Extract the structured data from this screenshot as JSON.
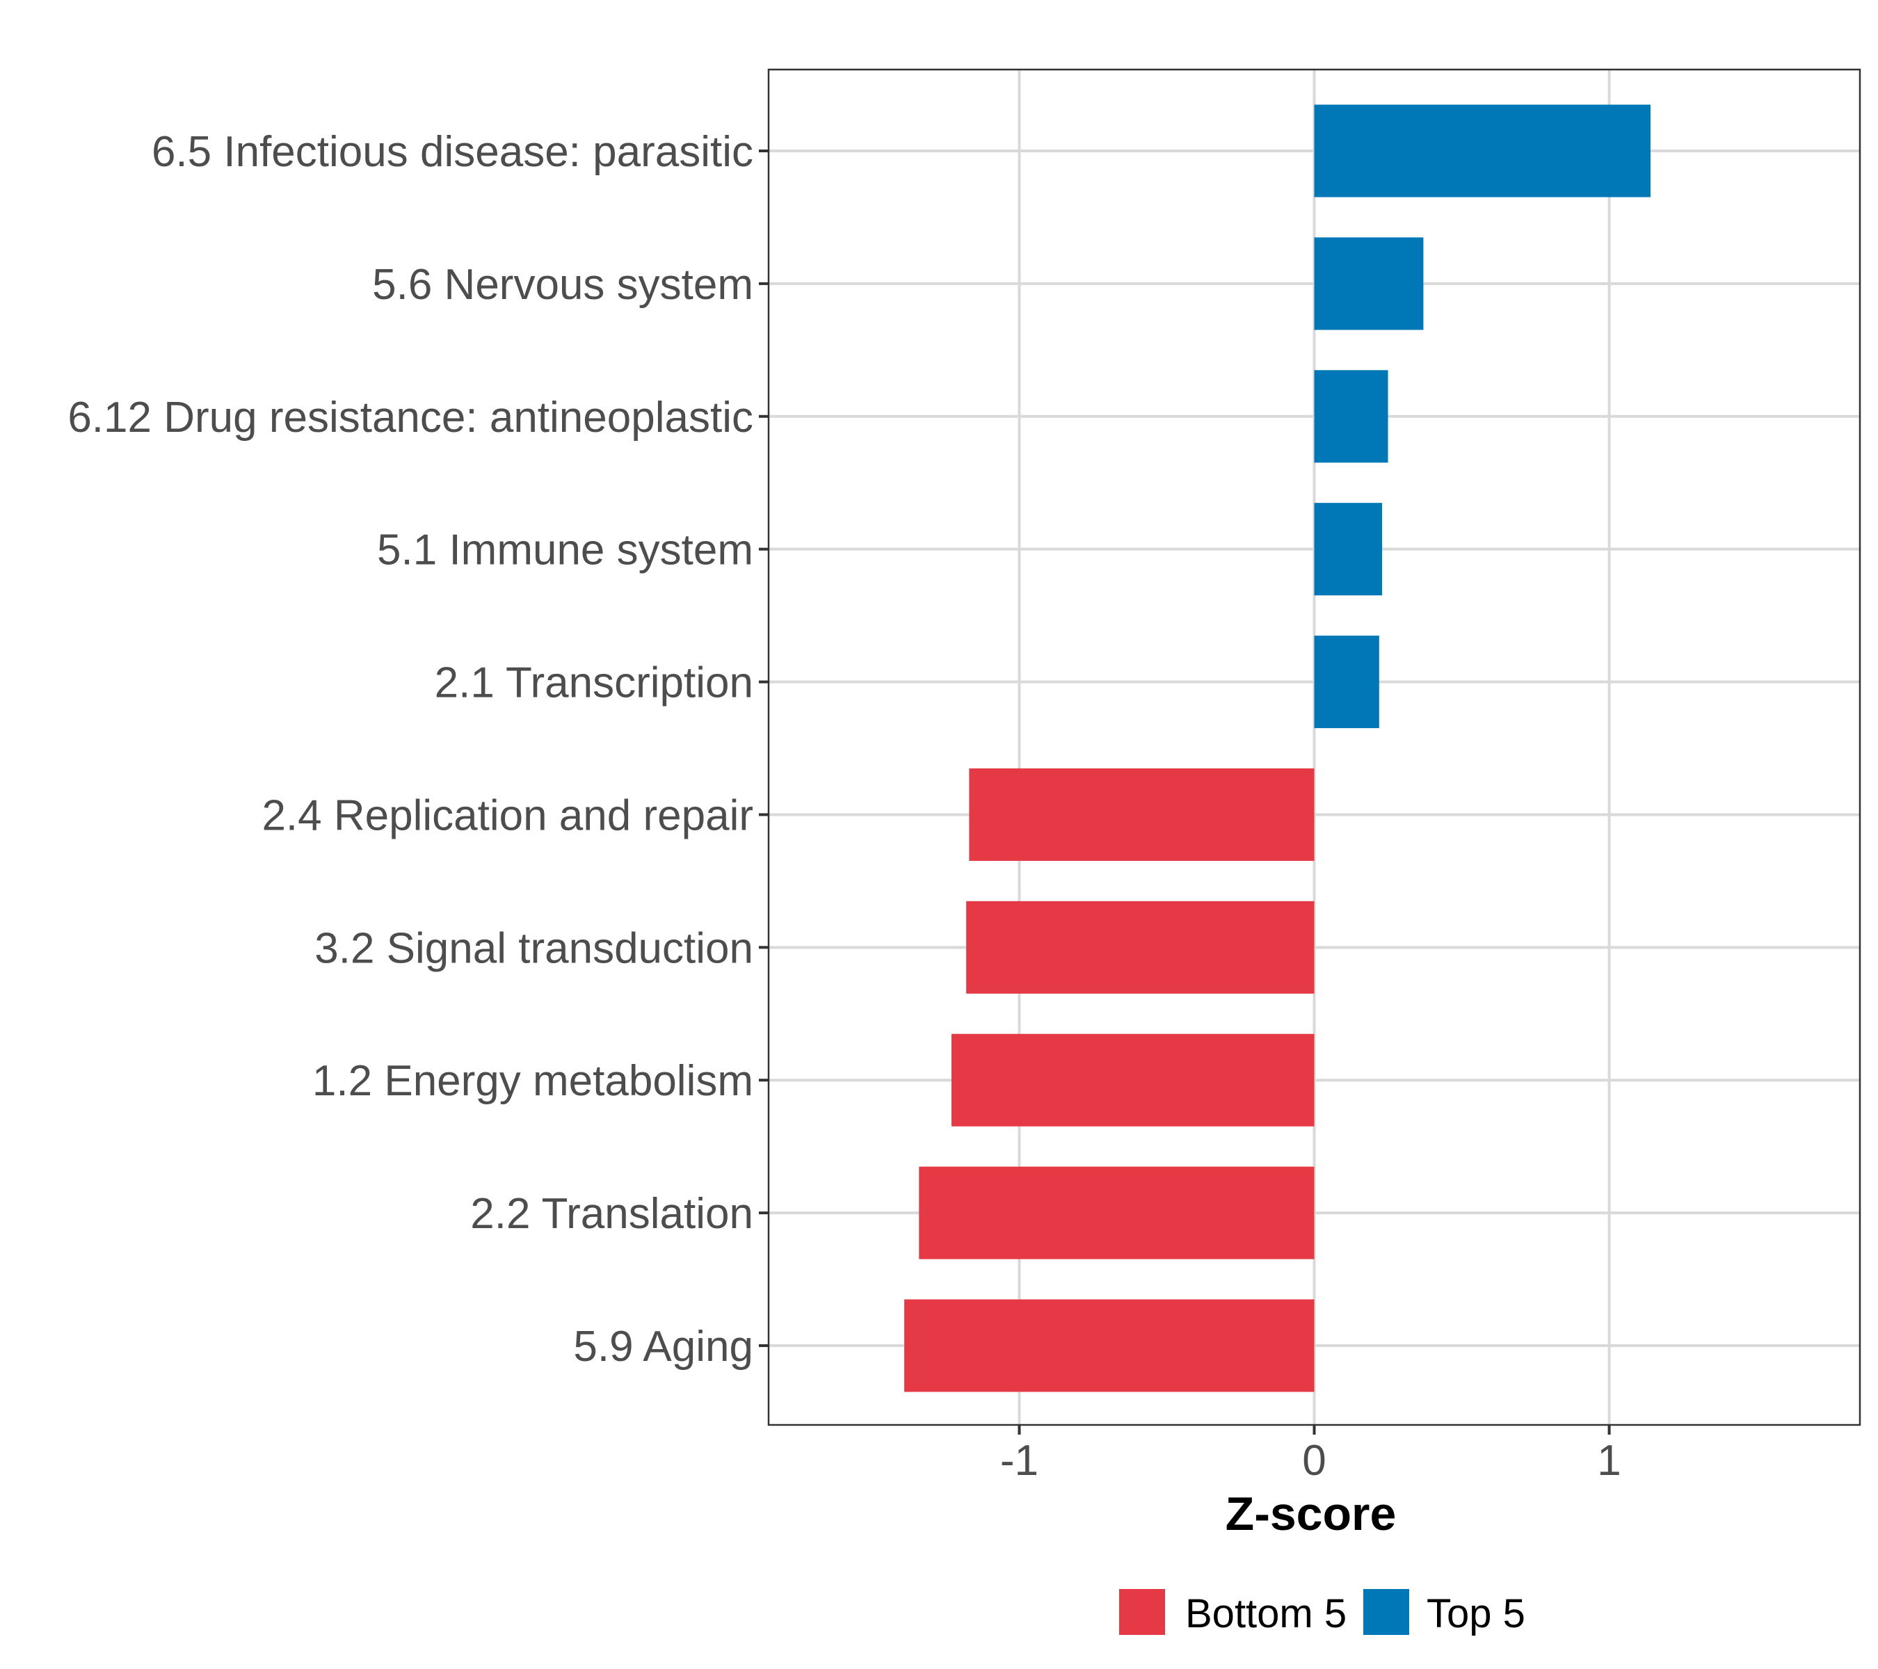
{
  "chart_data": {
    "type": "bar",
    "orientation": "horizontal",
    "title": "",
    "xlabel": "Z-score",
    "ylabel": "",
    "xlim": [
      -1.85,
      1.85
    ],
    "xticks": [
      -1,
      0,
      1
    ],
    "xtick_labels": [
      "-1",
      "0",
      "1"
    ],
    "grid": true,
    "legend_position": "bottom",
    "categories": [
      "6.5 Infectious disease: parasitic",
      "5.6 Nervous system",
      "6.12 Drug resistance: antineoplastic",
      "5.1 Immune system",
      "2.1 Transcription",
      "2.4 Replication and repair",
      "3.2 Signal transduction",
      "1.2 Energy metabolism",
      "2.2 Translation",
      "5.9 Aging"
    ],
    "values": [
      1.14,
      0.37,
      0.25,
      0.23,
      0.22,
      -1.17,
      -1.18,
      -1.23,
      -1.34,
      -1.39
    ],
    "groups": [
      "Top 5",
      "Top 5",
      "Top 5",
      "Top 5",
      "Top 5",
      "Bottom 5",
      "Bottom 5",
      "Bottom 5",
      "Bottom 5",
      "Bottom 5"
    ],
    "legend": [
      {
        "name": "Bottom 5",
        "color": "#e63946"
      },
      {
        "name": "Top 5",
        "color": "#0077b6"
      }
    ]
  }
}
